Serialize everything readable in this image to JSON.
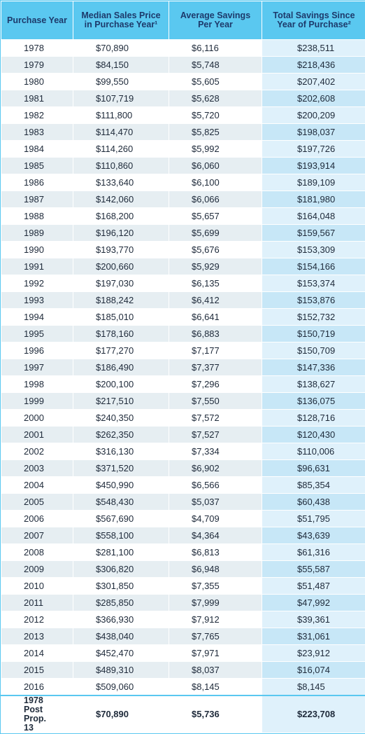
{
  "table": {
    "header": [
      "Purchase Year",
      "Median Sales Price in Purchase Year¹",
      "Average Savings Per Year",
      "Total Savings Since Year of Purchase²"
    ],
    "rows": [
      [
        "1978",
        "$70,890",
        "$6,116",
        "$238,511"
      ],
      [
        "1979",
        "$84,150",
        "$5,748",
        "$218,436"
      ],
      [
        "1980",
        "$99,550",
        "$5,605",
        "$207,402"
      ],
      [
        "1981",
        "$107,719",
        "$5,628",
        "$202,608"
      ],
      [
        "1982",
        "$111,800",
        "$5,720",
        "$200,209"
      ],
      [
        "1983",
        "$114,470",
        "$5,825",
        "$198,037"
      ],
      [
        "1984",
        "$114,260",
        "$5,992",
        "$197,726"
      ],
      [
        "1985",
        "$110,860",
        "$6,060",
        "$193,914"
      ],
      [
        "1986",
        "$133,640",
        "$6,100",
        "$189,109"
      ],
      [
        "1987",
        "$142,060",
        "$6,066",
        "$181,980"
      ],
      [
        "1988",
        "$168,200",
        "$5,657",
        "$164,048"
      ],
      [
        "1989",
        "$196,120",
        "$5,699",
        "$159,567"
      ],
      [
        "1990",
        "$193,770",
        "$5,676",
        "$153,309"
      ],
      [
        "1991",
        "$200,660",
        "$5,929",
        "$154,166"
      ],
      [
        "1992",
        "$197,030",
        "$6,135",
        "$153,374"
      ],
      [
        "1993",
        "$188,242",
        "$6,412",
        "$153,876"
      ],
      [
        "1994",
        "$185,010",
        "$6,641",
        "$152,732"
      ],
      [
        "1995",
        "$178,160",
        "$6,883",
        "$150,719"
      ],
      [
        "1996",
        "$177,270",
        "$7,177",
        "$150,709"
      ],
      [
        "1997",
        "$186,490",
        "$7,377",
        "$147,336"
      ],
      [
        "1998",
        "$200,100",
        "$7,296",
        "$138,627"
      ],
      [
        "1999",
        "$217,510",
        "$7,550",
        "$136,075"
      ],
      [
        "2000",
        "$240,350",
        "$7,572",
        "$128,716"
      ],
      [
        "2001",
        "$262,350",
        "$7,527",
        "$120,430"
      ],
      [
        "2002",
        "$316,130",
        "$7,334",
        "$110,006"
      ],
      [
        "2003",
        "$371,520",
        "$6,902",
        "$96,631"
      ],
      [
        "2004",
        "$450,990",
        "$6,566",
        "$85,354"
      ],
      [
        "2005",
        "$548,430",
        "$5,037",
        "$60,438"
      ],
      [
        "2006",
        "$567,690",
        "$4,709",
        "$51,795"
      ],
      [
        "2007",
        "$558,100",
        "$4,364",
        "$43,639"
      ],
      [
        "2008",
        "$281,100",
        "$6,813",
        "$61,316"
      ],
      [
        "2009",
        "$306,820",
        "$6,948",
        "$55,587"
      ],
      [
        "2010",
        "$301,850",
        "$7,355",
        "$51,487"
      ],
      [
        "2011",
        "$285,850",
        "$7,999",
        "$47,992"
      ],
      [
        "2012",
        "$366,930",
        "$7,912",
        "$39,361"
      ],
      [
        "2013",
        "$438,040",
        "$7,765",
        "$31,061"
      ],
      [
        "2014",
        "$452,470",
        "$7,971",
        "$23,912"
      ],
      [
        "2015",
        "$489,310",
        "$8,037",
        "$16,074"
      ],
      [
        "2016",
        "$509,060",
        "$8,145",
        "$8,145"
      ]
    ],
    "footer": [
      "1978 Post Prop. 13",
      "$70,890",
      "$5,736",
      "$223,708"
    ]
  }
}
